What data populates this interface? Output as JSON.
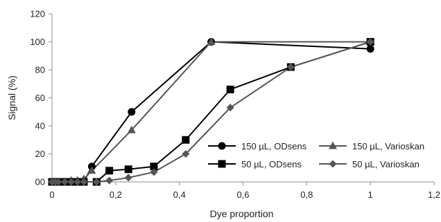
{
  "chart_data": {
    "type": "scatter",
    "title": "",
    "xlabel": "Dye proportion",
    "ylabel": "Signal (%)",
    "xlim": [
      0,
      1.2
    ],
    "ylim": [
      0,
      120
    ],
    "xticks": [
      0,
      0.2,
      0.4,
      0.6,
      0.8,
      1,
      1.2
    ],
    "xtick_labels": [
      "0",
      "0,2",
      "0,4",
      "0,6",
      "0,8",
      "1",
      "1,2"
    ],
    "yticks": [
      0,
      20,
      40,
      60,
      80,
      100,
      120
    ],
    "ytick_labels": [
      "00",
      "20",
      "40",
      "60",
      "80",
      "100",
      "120"
    ],
    "grid": false,
    "legend_position": "lower-right",
    "series": [
      {
        "name": "150 µL, ODsens",
        "marker": "circle",
        "color": "#000000",
        "x": [
          0,
          0.01,
          0.02,
          0.04,
          0.06,
          0.08,
          0.1,
          0.125,
          0.25,
          0.5,
          1
        ],
        "y": [
          0,
          0,
          0,
          0,
          0,
          0,
          0,
          11,
          50,
          100,
          95
        ]
      },
      {
        "name": "150 µL, Varioskan",
        "marker": "triangle",
        "color": "#555555",
        "x": [
          0,
          0.01,
          0.02,
          0.04,
          0.06,
          0.08,
          0.1,
          0.125,
          0.25,
          0.5,
          1
        ],
        "y": [
          0,
          0,
          0,
          0,
          1,
          1,
          2,
          8,
          37,
          100,
          100
        ]
      },
      {
        "name": "50 µL, ODsens",
        "marker": "square",
        "color": "#000000",
        "x": [
          0,
          0.01,
          0.02,
          0.04,
          0.06,
          0.08,
          0.1,
          0.14,
          0.18,
          0.24,
          0.32,
          0.42,
          0.56,
          0.75,
          1
        ],
        "y": [
          0,
          0,
          0,
          0,
          0,
          0,
          0,
          0,
          8,
          9,
          11,
          30,
          66,
          82,
          100
        ]
      },
      {
        "name": "50 µL, Varioskan",
        "marker": "diamond",
        "color": "#555555",
        "x": [
          0,
          0.01,
          0.02,
          0.04,
          0.06,
          0.08,
          0.1,
          0.14,
          0.18,
          0.24,
          0.32,
          0.42,
          0.56,
          0.75,
          1
        ],
        "y": [
          0,
          0,
          0,
          0,
          0,
          0,
          0,
          0,
          1,
          3,
          7,
          20,
          53,
          82,
          100
        ]
      }
    ]
  }
}
